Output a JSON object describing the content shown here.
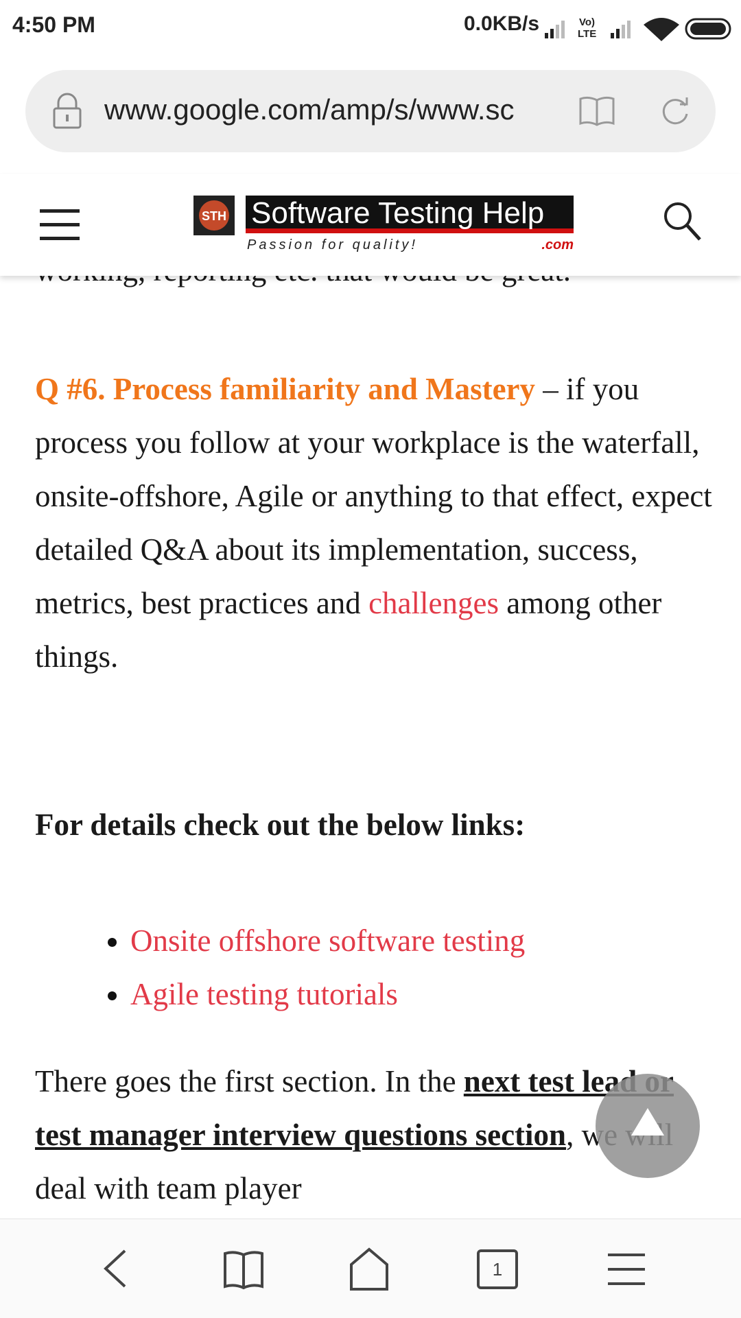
{
  "status": {
    "time": "4:50 PM",
    "speed": "0.0KB/s",
    "vo": "Vo)",
    "lte": "LTE"
  },
  "address_bar": {
    "url": "www.google.com/amp/s/www.sc"
  },
  "site_header": {
    "logo_icon": "STH",
    "title": "Software Testing Help",
    "tagline": "Passion for quality!",
    "domain": ".com"
  },
  "article": {
    "cut_line": "working, reporting etc. that would be great.",
    "q6": {
      "heading": "Q #6. Process familiarity and Mastery",
      "text1": " – if you process you follow at your workplace is the waterfall, onsite-offshore, Agile or anything to that effect, expect detailed Q&A about its implementation, success, metrics, best practices and ",
      "link": "challenges",
      "text2": " among other things."
    },
    "details_heading": "For details check out the below links:",
    "links": [
      "Onsite offshore software testing",
      "Agile testing tutorials"
    ],
    "closing": {
      "text1": "There goes the first section. In the ",
      "link": "next test lead or test manager interview questions section",
      "text2": ", we will deal with team player"
    }
  },
  "bottom_nav": {
    "tab_count": "1"
  }
}
